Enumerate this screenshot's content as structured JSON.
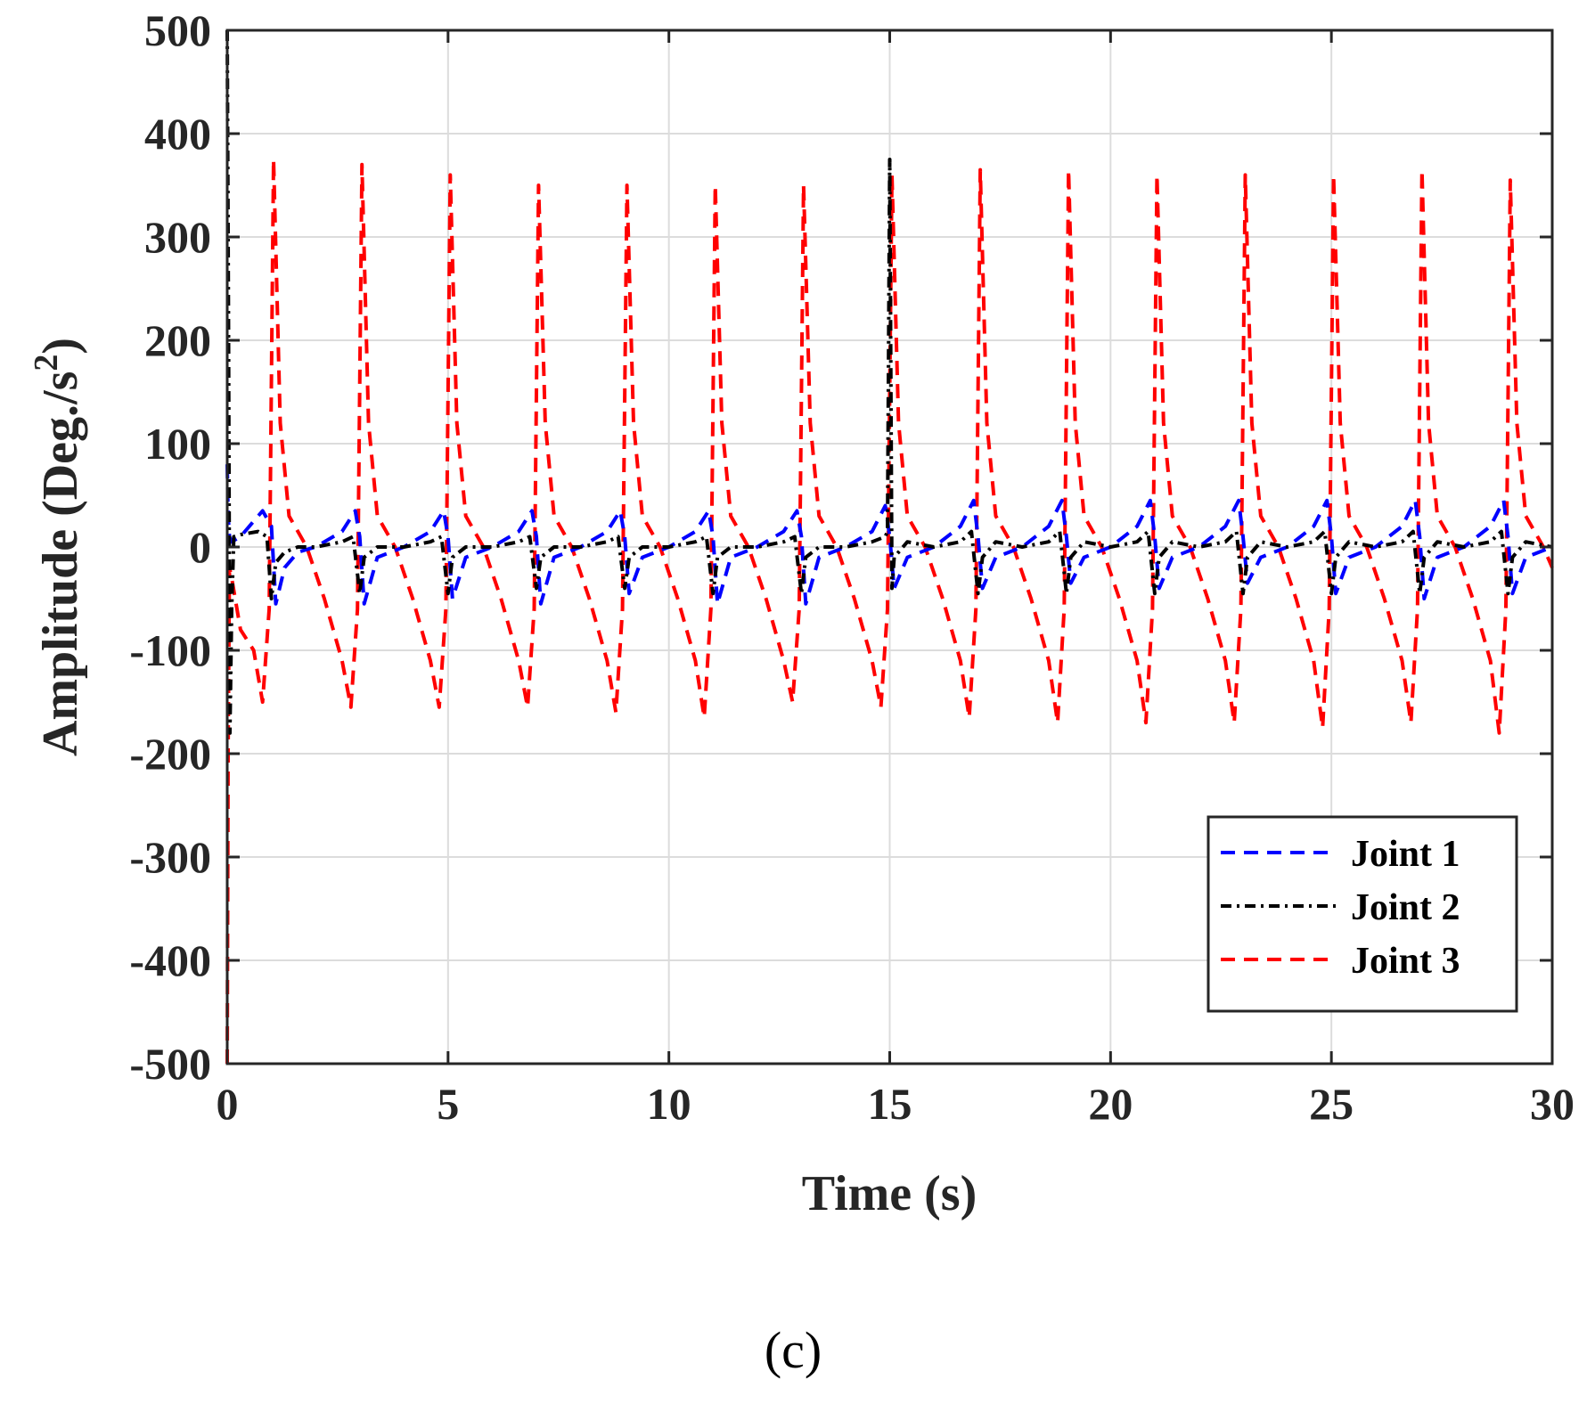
{
  "caption": "(c)",
  "chart_data": {
    "type": "line",
    "title": "",
    "xlabel": "Time (s)",
    "ylabel": "Amplitude (Deg./s",
    "ylabel_superscript": "2",
    "ylabel_close": ")",
    "xlim": [
      0,
      30
    ],
    "ylim": [
      -500,
      500
    ],
    "xticks": [
      0,
      5,
      10,
      15,
      20,
      25,
      30
    ],
    "xtick_labels": [
      "0",
      "5",
      "10",
      "15",
      "20",
      "25",
      "30"
    ],
    "yticks": [
      -500,
      -400,
      -300,
      -200,
      -100,
      0,
      100,
      200,
      300,
      400,
      500
    ],
    "ytick_labels": [
      "-500",
      "-400",
      "-300",
      "-200",
      "-100",
      "0",
      "100",
      "200",
      "300",
      "400",
      "500"
    ],
    "grid": true,
    "legend_position": "bottom-right",
    "series": [
      {
        "name": "Joint 1",
        "color": "#0000ff",
        "style": "dashed",
        "x": [
          0,
          0.02,
          0.05,
          0.1,
          0.3,
          0.8,
          1.0,
          1.1,
          1.3,
          1.6,
          2.0,
          2.6,
          2.9,
          3.0,
          3.1,
          3.4,
          4.0,
          4.6,
          4.9,
          5.0,
          5.1,
          5.4,
          6.0,
          6.6,
          6.9,
          7.0,
          7.1,
          7.4,
          8.0,
          8.6,
          8.9,
          9.0,
          9.1,
          9.4,
          10.0,
          10.6,
          10.9,
          11.0,
          11.1,
          11.4,
          12.0,
          12.6,
          12.9,
          13.0,
          13.1,
          13.4,
          14.0,
          14.6,
          14.9,
          15.0,
          15.1,
          15.4,
          16.0,
          16.6,
          16.9,
          17.0,
          17.1,
          17.4,
          18.0,
          18.6,
          18.9,
          19.0,
          19.1,
          19.4,
          20.0,
          20.6,
          20.9,
          21.0,
          21.1,
          21.4,
          22.0,
          22.6,
          22.9,
          23.0,
          23.1,
          23.4,
          24.0,
          24.6,
          24.9,
          25.0,
          25.1,
          25.4,
          26.0,
          26.6,
          26.9,
          27.0,
          27.1,
          27.4,
          28.0,
          28.6,
          28.9,
          29.0,
          29.1,
          29.4,
          30.0
        ],
        "y": [
          80,
          30,
          10,
          5,
          10,
          35,
          20,
          -55,
          -20,
          -5,
          0,
          15,
          35,
          10,
          -55,
          -10,
          0,
          15,
          35,
          10,
          -50,
          -10,
          0,
          15,
          35,
          10,
          -55,
          -10,
          0,
          15,
          35,
          10,
          -45,
          -10,
          0,
          15,
          35,
          10,
          -55,
          -10,
          0,
          15,
          35,
          10,
          -55,
          -10,
          0,
          15,
          40,
          10,
          -40,
          -10,
          0,
          20,
          45,
          10,
          -40,
          -10,
          0,
          20,
          45,
          10,
          -35,
          -10,
          0,
          20,
          45,
          10,
          -40,
          -10,
          0,
          20,
          45,
          10,
          -35,
          -10,
          0,
          20,
          45,
          10,
          -45,
          -10,
          0,
          20,
          45,
          10,
          -50,
          -10,
          0,
          20,
          45,
          10,
          -45,
          -10,
          0
        ]
      },
      {
        "name": "Joint 2",
        "color": "#000000",
        "style": "dashdot",
        "x": [
          0,
          0.03,
          0.06,
          0.1,
          0.15,
          0.3,
          0.7,
          0.9,
          1.0,
          1.1,
          1.3,
          1.6,
          2.0,
          2.6,
          2.85,
          3.0,
          3.1,
          3.4,
          4.0,
          4.6,
          4.85,
          5.0,
          5.1,
          5.4,
          6.0,
          6.6,
          6.85,
          7.0,
          7.1,
          7.4,
          8.0,
          8.6,
          8.85,
          9.0,
          9.1,
          9.4,
          10.0,
          10.6,
          10.85,
          11.0,
          11.1,
          11.4,
          12.0,
          12.6,
          12.85,
          13.0,
          13.1,
          13.4,
          14.0,
          14.6,
          14.9,
          14.95,
          15.0,
          15.05,
          15.1,
          15.4,
          16.0,
          16.6,
          16.85,
          17.0,
          17.1,
          17.4,
          18.0,
          18.6,
          18.85,
          19.0,
          19.1,
          19.4,
          20.0,
          20.6,
          20.85,
          21.0,
          21.1,
          21.4,
          22.0,
          22.6,
          22.85,
          23.0,
          23.1,
          23.4,
          24.0,
          24.6,
          24.85,
          25.0,
          25.1,
          25.4,
          26.0,
          26.6,
          26.85,
          27.0,
          27.1,
          27.4,
          28.0,
          28.6,
          28.85,
          29.0,
          29.1,
          29.4,
          30.0
        ],
        "y": [
          500,
          200,
          -180,
          -60,
          10,
          12,
          15,
          10,
          -50,
          -15,
          -5,
          0,
          0,
          5,
          10,
          -45,
          -10,
          0,
          0,
          5,
          10,
          -45,
          -10,
          0,
          0,
          5,
          10,
          -40,
          -10,
          0,
          0,
          5,
          10,
          -40,
          -10,
          0,
          0,
          5,
          10,
          -45,
          -10,
          0,
          0,
          5,
          10,
          -45,
          -10,
          0,
          0,
          5,
          10,
          15,
          375,
          -40,
          -10,
          5,
          0,
          5,
          15,
          -45,
          -10,
          5,
          0,
          5,
          15,
          -45,
          -10,
          5,
          0,
          5,
          15,
          -45,
          -10,
          5,
          0,
          5,
          15,
          -45,
          -10,
          5,
          0,
          5,
          15,
          -45,
          -10,
          5,
          0,
          5,
          15,
          -45,
          -10,
          5,
          0,
          5,
          15,
          -45,
          -10,
          5,
          0
        ]
      },
      {
        "name": "Joint 3",
        "color": "#ff0000",
        "style": "dashed",
        "x": [
          0,
          0.02,
          0.05,
          0.1,
          0.3,
          0.6,
          0.8,
          0.95,
          1.05,
          1.2,
          1.4,
          1.8,
          2.2,
          2.6,
          2.8,
          2.95,
          3.05,
          3.2,
          3.4,
          3.8,
          4.2,
          4.6,
          4.8,
          4.95,
          5.05,
          5.2,
          5.4,
          5.8,
          6.2,
          6.6,
          6.8,
          6.95,
          7.05,
          7.2,
          7.4,
          7.8,
          8.2,
          8.6,
          8.8,
          8.95,
          9.05,
          9.2,
          9.4,
          9.8,
          10.2,
          10.6,
          10.8,
          10.95,
          11.05,
          11.2,
          11.4,
          11.8,
          12.2,
          12.6,
          12.8,
          12.95,
          13.05,
          13.2,
          13.4,
          13.8,
          14.2,
          14.6,
          14.8,
          14.95,
          15.05,
          15.2,
          15.4,
          15.8,
          16.2,
          16.6,
          16.8,
          16.95,
          17.05,
          17.2,
          17.4,
          17.8,
          18.2,
          18.6,
          18.8,
          18.95,
          19.05,
          19.2,
          19.4,
          19.8,
          20.2,
          20.6,
          20.8,
          20.95,
          21.05,
          21.2,
          21.4,
          21.8,
          22.2,
          22.6,
          22.8,
          22.95,
          23.05,
          23.2,
          23.4,
          23.8,
          24.2,
          24.6,
          24.8,
          24.95,
          25.05,
          25.2,
          25.4,
          25.8,
          26.2,
          26.6,
          26.8,
          26.95,
          27.05,
          27.2,
          27.4,
          27.8,
          28.2,
          28.6,
          28.8,
          28.95,
          29.05,
          29.2,
          29.4,
          29.8,
          30.0
        ],
        "y": [
          -500,
          -200,
          -20,
          -30,
          -80,
          -100,
          -150,
          -60,
          375,
          120,
          30,
          0,
          -50,
          -110,
          -155,
          -60,
          370,
          120,
          30,
          0,
          -50,
          -110,
          -155,
          -60,
          360,
          120,
          30,
          0,
          -50,
          -110,
          -155,
          -60,
          350,
          120,
          30,
          0,
          -50,
          -110,
          -160,
          -60,
          350,
          120,
          30,
          0,
          -50,
          -110,
          -165,
          -60,
          350,
          120,
          30,
          0,
          -50,
          -110,
          -150,
          -60,
          350,
          120,
          30,
          0,
          -50,
          -110,
          -155,
          -60,
          360,
          120,
          30,
          0,
          -50,
          -110,
          -165,
          -60,
          365,
          120,
          30,
          0,
          -50,
          -110,
          -170,
          -60,
          365,
          120,
          30,
          0,
          -50,
          -110,
          -170,
          -60,
          360,
          120,
          30,
          0,
          -50,
          -110,
          -170,
          -60,
          360,
          120,
          30,
          0,
          -50,
          -110,
          -175,
          -60,
          360,
          120,
          30,
          0,
          -50,
          -110,
          -170,
          -60,
          365,
          120,
          30,
          0,
          -50,
          -110,
          -180,
          -60,
          355,
          120,
          30,
          0,
          -20
        ]
      }
    ]
  }
}
